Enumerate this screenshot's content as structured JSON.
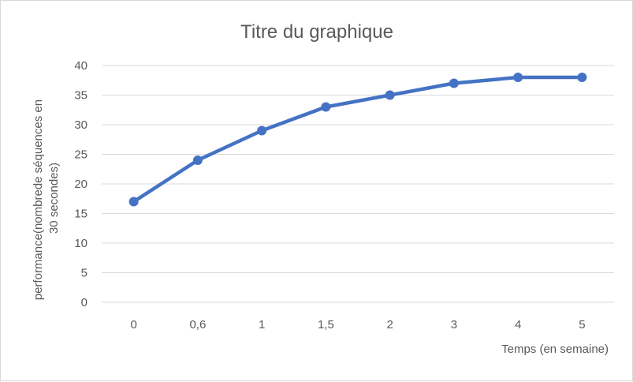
{
  "chart_data": {
    "type": "line",
    "title": "Titre du graphique",
    "xlabel": "Temps (en semaine)",
    "ylabel": [
      "performance(nombrede  séquences en",
      "30 secondes)"
    ],
    "categories": [
      "0",
      "0,6",
      "1",
      "1,5",
      "2",
      "3",
      "4",
      "5"
    ],
    "series": [
      {
        "values": [
          17,
          24,
          29,
          33,
          35,
          37,
          38,
          38
        ],
        "color": "#4472c4"
      }
    ],
    "ylim": [
      0,
      40
    ],
    "yticks": [
      "0",
      "5",
      "10",
      "15",
      "20",
      "25",
      "30",
      "35",
      "40"
    ],
    "grid": true,
    "legend": "none",
    "markers": true
  }
}
